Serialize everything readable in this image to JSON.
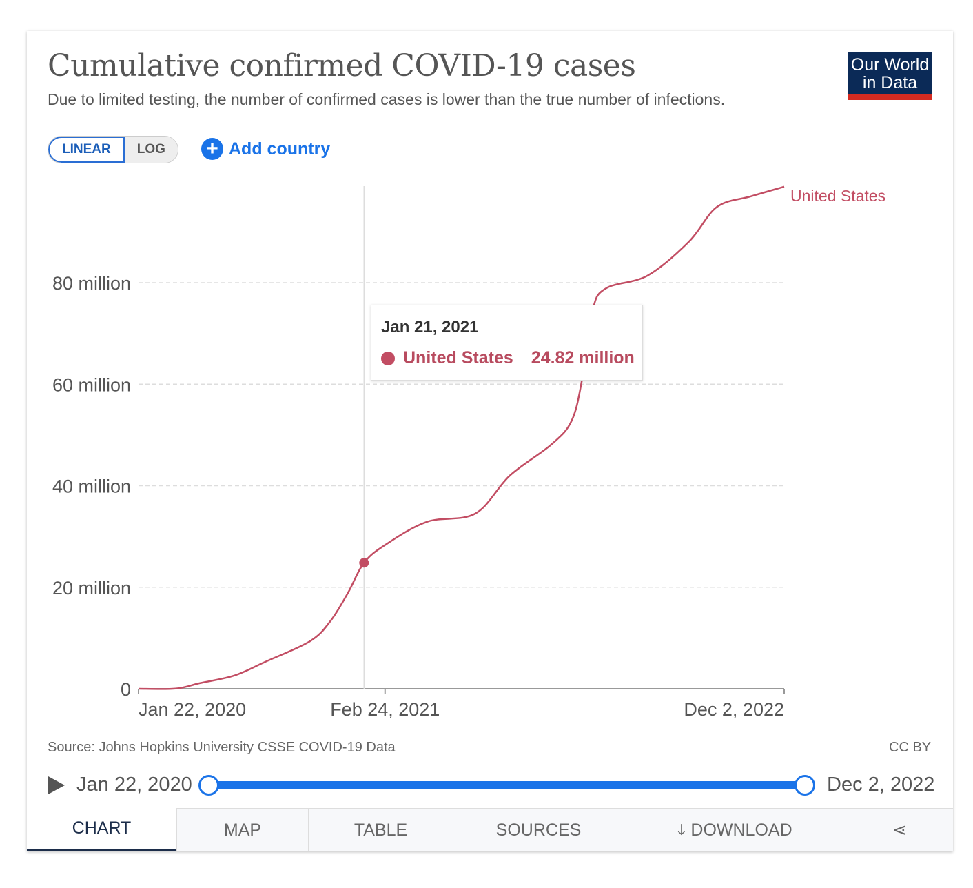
{
  "header": {
    "title": "Cumulative confirmed COVID-19 cases",
    "subtitle": "Due to limited testing, the number of confirmed cases is lower than the true number of infections.",
    "logo_line1": "Our World",
    "logo_line2": "in Data"
  },
  "controls": {
    "linear": "LINEAR",
    "log": "LOG",
    "add_country": "Add country"
  },
  "tooltip": {
    "date": "Jan 21, 2021",
    "series": "United States",
    "value": "24.82 million"
  },
  "footer": {
    "source": "Source: Johns Hopkins University CSSE COVID-19 Data",
    "license": "CC BY"
  },
  "timeline": {
    "start": "Jan 22, 2020",
    "end": "Dec 2, 2022"
  },
  "tabs": [
    "CHART",
    "MAP",
    "TABLE",
    "SOURCES",
    "DOWNLOAD"
  ],
  "colors": {
    "series": "#c24d63",
    "accent": "#1a73e8"
  },
  "chart_data": {
    "type": "line",
    "title": "Cumulative confirmed COVID-19 cases",
    "ylabel": "",
    "xlabel": "",
    "ylim": [
      0,
      99000000
    ],
    "yticks": [
      {
        "v": 0,
        "label": "0"
      },
      {
        "v": 20000000,
        "label": "20 million"
      },
      {
        "v": 40000000,
        "label": "40 million"
      },
      {
        "v": 60000000,
        "label": "60 million"
      },
      {
        "v": 80000000,
        "label": "80 million"
      }
    ],
    "xticks": [
      {
        "d": "2020-01-22",
        "label": "Jan 22, 2020"
      },
      {
        "d": "2021-02-24",
        "label": "Feb 24, 2021"
      },
      {
        "d": "2022-12-02",
        "label": "Dec 2, 2022"
      }
    ],
    "xlim": [
      "2020-01-22",
      "2022-12-02"
    ],
    "highlight": {
      "d": "2021-01-21",
      "v": 24820000
    },
    "series": [
      {
        "name": "United States",
        "points": [
          [
            "2020-01-22",
            0
          ],
          [
            "2020-03-22",
            30000
          ],
          [
            "2020-04-30",
            1100000
          ],
          [
            "2020-06-25",
            2600000
          ],
          [
            "2020-08-14",
            5300000
          ],
          [
            "2020-10-26",
            9400000
          ],
          [
            "2020-11-28",
            13400000
          ],
          [
            "2020-12-26",
            18900000
          ],
          [
            "2021-01-21",
            24820000
          ],
          [
            "2021-02-25",
            28400000
          ],
          [
            "2021-05-03",
            32900000
          ],
          [
            "2021-07-20",
            34500000
          ],
          [
            "2021-09-14",
            42000000
          ],
          [
            "2021-11-20",
            48100000
          ],
          [
            "2021-12-23",
            52800000
          ],
          [
            "2022-01-09",
            61000000
          ],
          [
            "2022-01-26",
            74600000
          ],
          [
            "2022-02-17",
            78900000
          ],
          [
            "2022-04-25",
            81400000
          ],
          [
            "2022-07-01",
            88100000
          ],
          [
            "2022-08-15",
            94900000
          ],
          [
            "2022-10-09",
            97000000
          ],
          [
            "2022-12-02",
            98900000
          ]
        ]
      }
    ]
  }
}
